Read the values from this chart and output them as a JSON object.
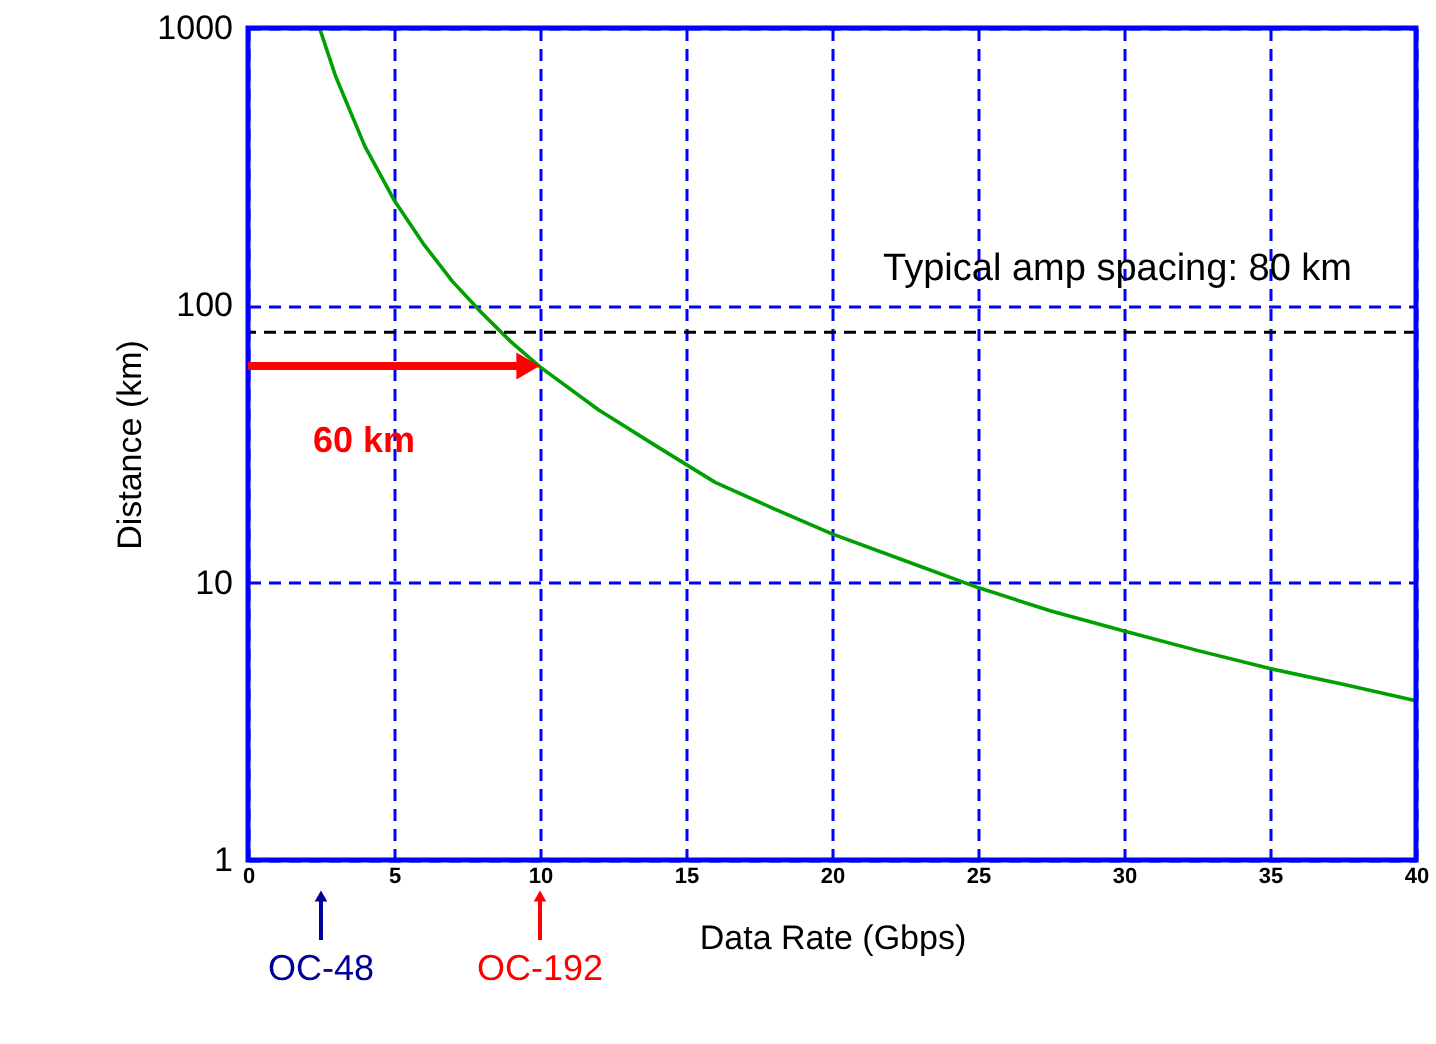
{
  "chart_data": {
    "type": "line",
    "xlabel": "Data Rate (Gbps)",
    "ylabel": "Distance (km)",
    "log": "y",
    "xlim": [
      0,
      40
    ],
    "xticks": [
      0,
      5,
      10,
      15,
      20,
      25,
      30,
      35,
      40
    ],
    "ylim": [
      1,
      1000
    ],
    "yticks": [
      1,
      10,
      100,
      1000
    ],
    "grid": true,
    "marker": "none",
    "line_style": "solid",
    "series": [
      {
        "color": "#00a000",
        "x": [
          2.45,
          3,
          4,
          5,
          6,
          7,
          8,
          9,
          10,
          12,
          14,
          16,
          18,
          20,
          22.5,
          25,
          27.5,
          30,
          32.5,
          35,
          37.5,
          40
        ],
        "values": [
          1000,
          670,
          375,
          240,
          167,
          122,
          94,
          74,
          60,
          42,
          31,
          23,
          18.5,
          15,
          12,
          9.6,
          7.9,
          6.7,
          5.7,
          4.9,
          4.3,
          3.75
        ]
      }
    ],
    "ref_lines": [
      {
        "axis": "y",
        "value": 80,
        "label": "Typical amp spacing: 80 km",
        "color": "#000000",
        "line_style": "dashed"
      }
    ],
    "annotations": [
      "60 km",
      {
        "text": "OC-48",
        "x": 2.5
      },
      {
        "text": "OC-192",
        "x": 10
      }
    ]
  }
}
